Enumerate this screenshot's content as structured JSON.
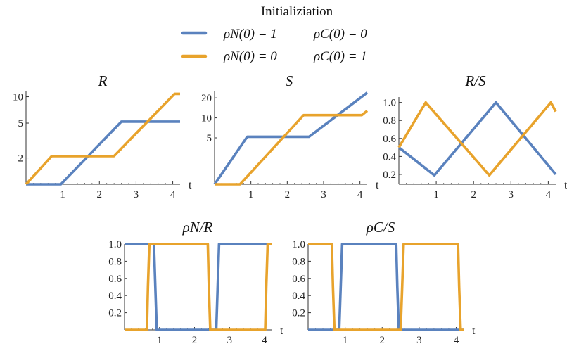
{
  "legend": {
    "title": "Initializiation",
    "entries": [
      {
        "color": "#5a82be",
        "label_a": "ρN(0) = 1",
        "label_b": "ρC(0) = 0"
      },
      {
        "color": "#e8a32c",
        "label_a": "ρN(0) = 0",
        "label_b": "ρC(0) = 1"
      }
    ]
  },
  "chart_data": [
    {
      "type": "line",
      "title": "R",
      "xlabel": "t",
      "ylabel": "",
      "yscale": "log",
      "xlim": [
        0,
        4.2
      ],
      "ylim": [
        1,
        11.5
      ],
      "xticks": [
        1,
        2,
        3,
        4
      ],
      "yticks": [
        2,
        5,
        10
      ],
      "series": [
        {
          "color": "#5a82be",
          "x": [
            0,
            0.95,
            2.6,
            4.2
          ],
          "y": [
            1,
            1,
            5.2,
            5.2
          ]
        },
        {
          "color": "#e8a32c",
          "x": [
            0,
            0.7,
            2.4,
            4.05,
            4.2
          ],
          "y": [
            1,
            2.1,
            2.1,
            10.8,
            10.8
          ]
        }
      ]
    },
    {
      "type": "line",
      "title": "S",
      "xlabel": "t",
      "ylabel": "",
      "yscale": "log",
      "xlim": [
        0,
        4.2
      ],
      "ylim": [
        1,
        25
      ],
      "xticks": [
        1,
        2,
        3,
        4
      ],
      "yticks": [
        5,
        10,
        20
      ],
      "series": [
        {
          "color": "#5a82be",
          "x": [
            0,
            0.9,
            2.6,
            4.2
          ],
          "y": [
            1,
            5.2,
            5.2,
            24
          ]
        },
        {
          "color": "#e8a32c",
          "x": [
            0,
            0.7,
            2.45,
            4.05,
            4.2
          ],
          "y": [
            1,
            1,
            11,
            11,
            12.8
          ]
        }
      ]
    },
    {
      "type": "line",
      "title": "R/S",
      "xlabel": "t",
      "ylabel": "",
      "xlim": [
        0,
        4.2
      ],
      "ylim": [
        0.09,
        1.06
      ],
      "xticks": [
        1,
        2,
        3,
        4
      ],
      "yticks": [
        0.2,
        0.4,
        0.6,
        0.8,
        1.0
      ],
      "series": [
        {
          "color": "#5a82be",
          "x": [
            0,
            0.95,
            2.6,
            4.2
          ],
          "y": [
            0.5,
            0.19,
            1.0,
            0.2
          ]
        },
        {
          "color": "#e8a32c",
          "x": [
            0,
            0.72,
            2.42,
            4.07,
            4.2
          ],
          "y": [
            0.5,
            1.0,
            0.19,
            1.0,
            0.9
          ]
        }
      ]
    },
    {
      "type": "line",
      "title": "ρN/R",
      "xlabel": "t",
      "ylabel": "",
      "xlim": [
        0,
        4.2
      ],
      "ylim": [
        0,
        1.0
      ],
      "xticks": [
        1,
        2,
        3,
        4
      ],
      "yticks": [
        0.2,
        0.4,
        0.6,
        0.8,
        1.0
      ],
      "series": [
        {
          "color": "#5a82be",
          "x": [
            0,
            0.84,
            0.88,
            0.92,
            2.62,
            2.66,
            2.7,
            4.2
          ],
          "y": [
            1,
            1,
            0.5,
            0,
            0,
            0.5,
            1,
            1
          ]
        },
        {
          "color": "#e8a32c",
          "x": [
            0,
            0.64,
            0.67,
            0.71,
            2.38,
            2.41,
            2.45,
            4.02,
            4.05,
            4.09,
            4.2
          ],
          "y": [
            0,
            0,
            0.5,
            1,
            1,
            0.5,
            0,
            0,
            0.5,
            1,
            1
          ]
        }
      ]
    },
    {
      "type": "line",
      "title": "ρC/S",
      "xlabel": "t",
      "ylabel": "",
      "xlim": [
        0,
        4.2
      ],
      "ylim": [
        0,
        1.0
      ],
      "xticks": [
        1,
        2,
        3,
        4
      ],
      "yticks": [
        0.2,
        0.4,
        0.6,
        0.8,
        1.0
      ],
      "series": [
        {
          "color": "#5a82be",
          "x": [
            0,
            0.84,
            0.88,
            0.92,
            2.38,
            2.41,
            2.45,
            4.2
          ],
          "y": [
            0,
            0,
            0.5,
            1,
            1,
            0.5,
            0,
            0
          ]
        },
        {
          "color": "#e8a32c",
          "x": [
            0,
            0.64,
            0.67,
            0.71,
            2.5,
            2.54,
            2.58,
            4.05,
            4.08,
            4.12,
            4.2
          ],
          "y": [
            1,
            1,
            0.5,
            0,
            0,
            0.5,
            1,
            1,
            0.5,
            0,
            0
          ]
        }
      ]
    }
  ]
}
